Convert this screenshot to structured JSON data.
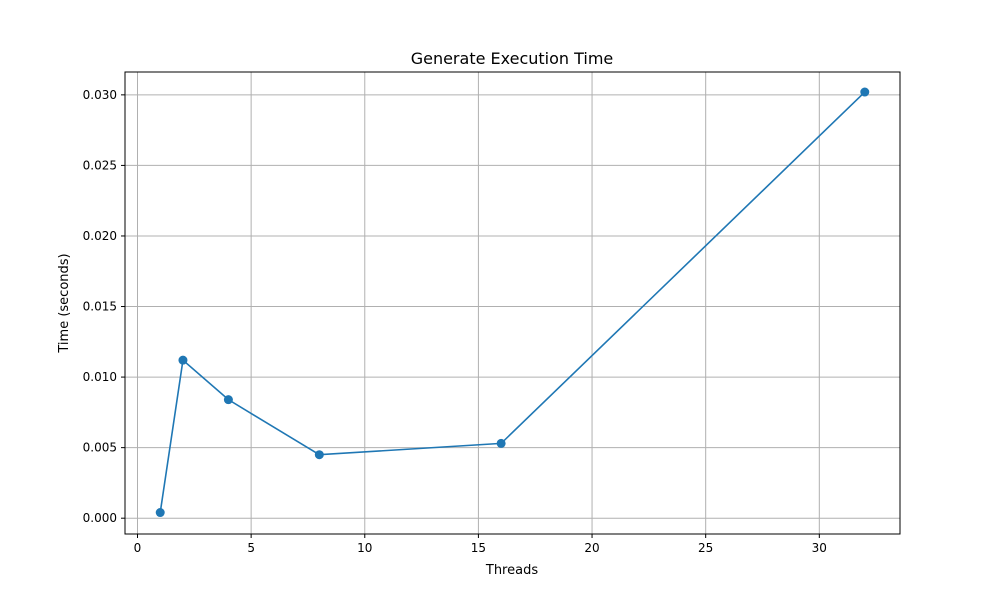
{
  "chart_data": {
    "type": "line",
    "title": "Generate Execution Time",
    "xlabel": "Threads",
    "ylabel": "Time (seconds)",
    "xlim": [
      -0.55,
      33.55
    ],
    "ylim": [
      -0.00112,
      0.03162
    ],
    "xticks": [
      0,
      5,
      10,
      15,
      20,
      25,
      30
    ],
    "yticks": [
      0.0,
      0.005,
      0.01,
      0.015,
      0.02,
      0.025,
      0.03
    ],
    "xtick_labels": [
      "0",
      "5",
      "10",
      "15",
      "20",
      "25",
      "30"
    ],
    "ytick_labels": [
      "0.000",
      "0.005",
      "0.010",
      "0.015",
      "0.020",
      "0.025",
      "0.030"
    ],
    "grid": true,
    "series": [
      {
        "color": "#1f77b4",
        "marker": "circle",
        "x": [
          1,
          2,
          4,
          8,
          16,
          32
        ],
        "y": [
          0.0004,
          0.0112,
          0.0084,
          0.0045,
          0.0053,
          0.0302
        ]
      }
    ]
  }
}
